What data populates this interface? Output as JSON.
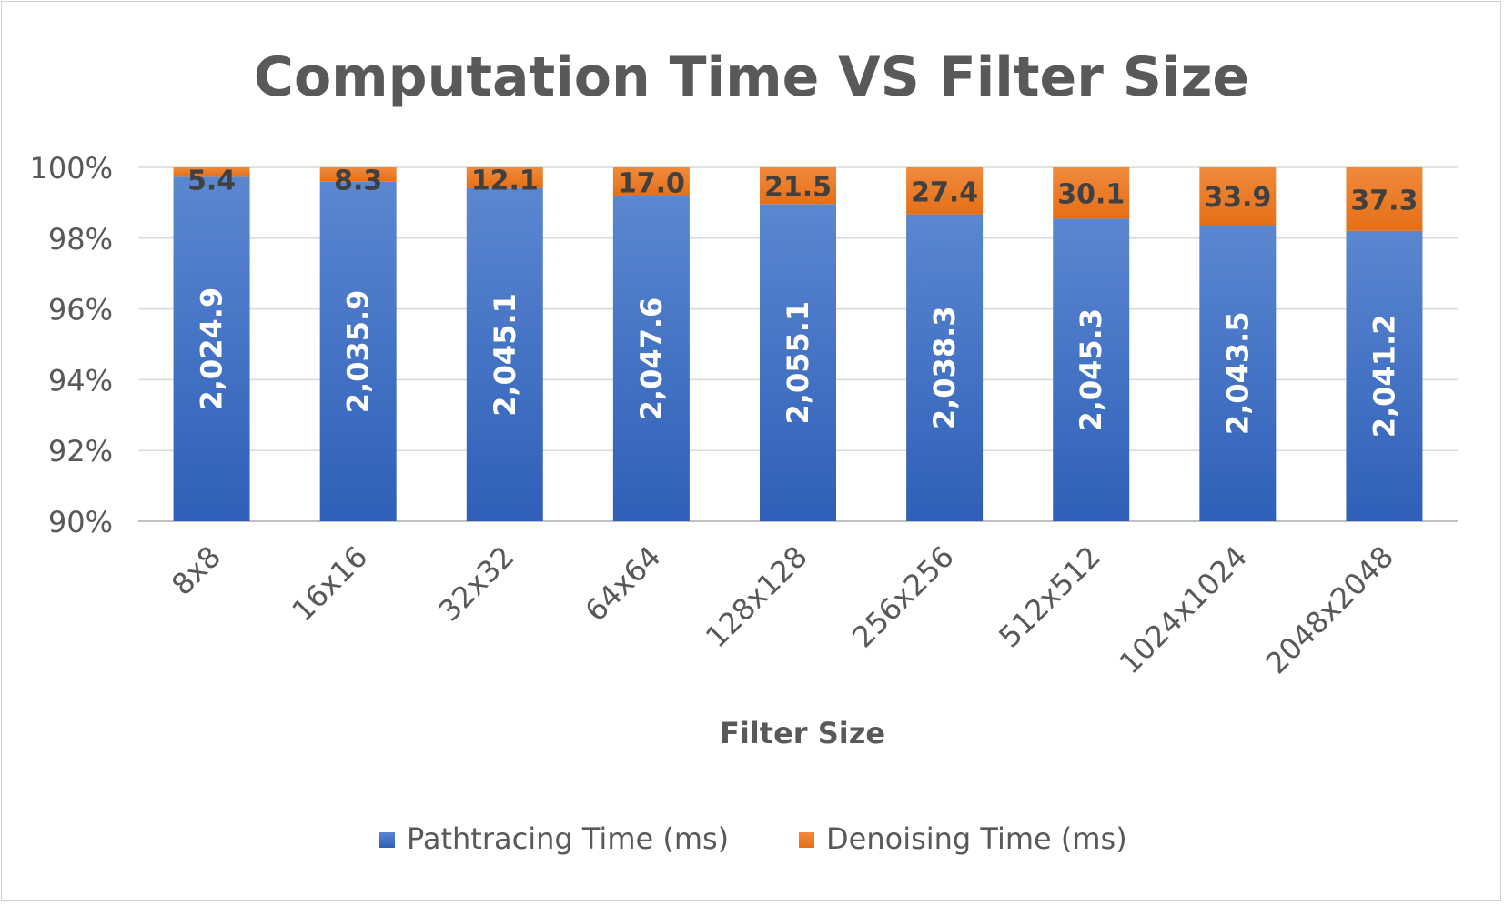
{
  "chart_data": {
    "type": "bar",
    "stacked": "percent",
    "title": "Computation Time VS Filter Size",
    "xlabel": "Filter Size",
    "ylabel": "",
    "ylim": [
      90,
      100
    ],
    "yticks": [
      "90%",
      "92%",
      "94%",
      "96%",
      "98%",
      "100%"
    ],
    "grid": true,
    "legend_position": "bottom",
    "categories": [
      "8x8",
      "16x16",
      "32x32",
      "64x64",
      "128x128",
      "256x256",
      "512x512",
      "1024x1024",
      "2048x2048"
    ],
    "series": [
      {
        "name": "Pathtracing Time (ms)",
        "color": "#4472C4",
        "values": [
          2024.9,
          2035.9,
          2045.1,
          2047.6,
          2055.1,
          2038.3,
          2045.3,
          2043.5,
          2041.2
        ],
        "labels": [
          "2,024.9",
          "2,035.9",
          "2,045.1",
          "2,047.6",
          "2,055.1",
          "2,038.3",
          "2,045.3",
          "2,043.5",
          "2,041.2"
        ]
      },
      {
        "name": "Denoising Time (ms)",
        "color": "#ED7D31",
        "values": [
          5.4,
          8.3,
          12.1,
          17.0,
          21.5,
          27.4,
          30.1,
          33.9,
          37.3
        ],
        "labels": [
          "5.4",
          "8.3",
          "12.1",
          "17.0",
          "21.5",
          "27.4",
          "30.1",
          "33.9",
          "37.3"
        ]
      }
    ]
  }
}
